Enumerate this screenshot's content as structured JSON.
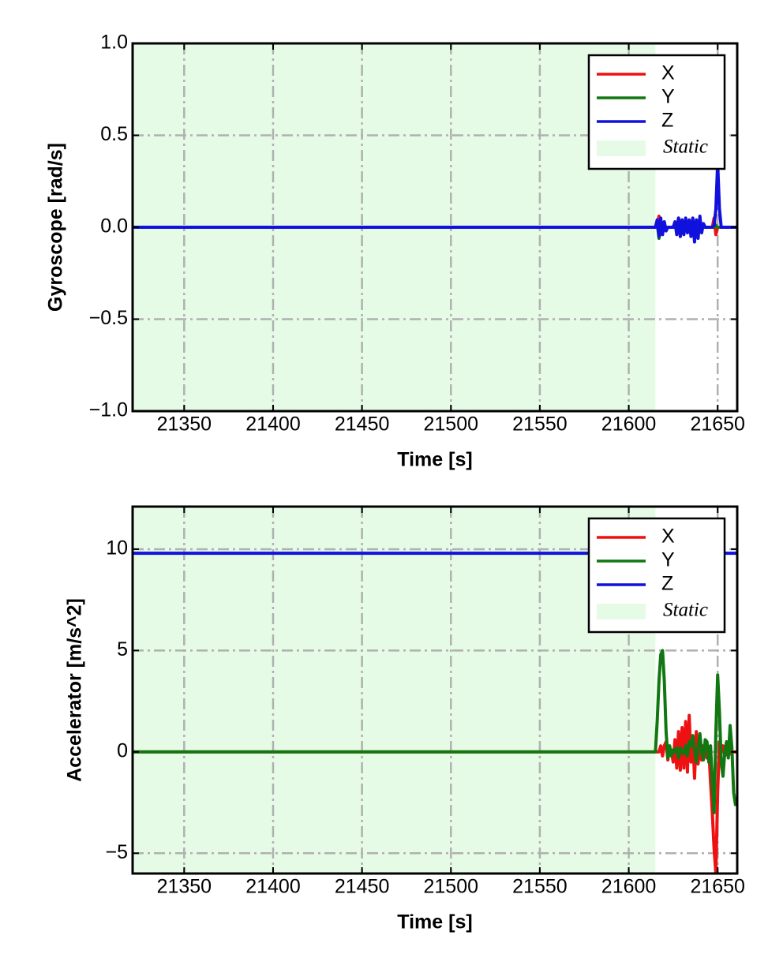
{
  "chart_data": [
    {
      "type": "line",
      "xlabel": "Time [s]",
      "ylabel": "Gyroscope [rad/s]",
      "xlim": [
        21321,
        21661
      ],
      "ylim": [
        -1,
        1
      ],
      "xticks": [
        21350,
        21400,
        21450,
        21500,
        21550,
        21600,
        21650
      ],
      "yticks": [
        {
          "value": -1,
          "label": "−1.0"
        },
        {
          "value": -0.5,
          "label": "−0.5"
        },
        {
          "value": 0,
          "label": "0.0"
        },
        {
          "value": 0.5,
          "label": "0.5"
        },
        {
          "value": 1,
          "label": "1.0"
        }
      ],
      "grid": true,
      "legend": "upper right",
      "static": {
        "name": "Static",
        "color": "#e6fbe6",
        "xrange": [
          21321,
          21615
        ]
      },
      "x": [
        21321,
        21400,
        21500,
        21600,
        21615,
        21616,
        21617,
        21618,
        21619,
        21620,
        21621,
        21622,
        21623,
        21624,
        21625,
        21626,
        21627,
        21628,
        21629,
        21630,
        21631,
        21632,
        21633,
        21634,
        21635,
        21636,
        21637,
        21638,
        21639,
        21640,
        21641,
        21642,
        21643,
        21644,
        21645,
        21646,
        21647,
        21648,
        21649,
        21650,
        21651,
        21652,
        21653,
        21654,
        21655,
        21656,
        21657,
        21658,
        21659,
        21660,
        21661
      ],
      "series": [
        {
          "name": "X",
          "color": "#ee1111",
          "values": [
            0,
            0,
            0,
            0,
            0,
            0.01,
            0.06,
            -0.04,
            0.02,
            0,
            0,
            0,
            0,
            0,
            0,
            0,
            0,
            0.05,
            -0.05,
            0.04,
            -0.02,
            0,
            0,
            0,
            0,
            0,
            0,
            0,
            0,
            0,
            0,
            0,
            0,
            0,
            0,
            0,
            0,
            0.05,
            -0.04,
            0,
            0,
            0,
            0,
            0,
            0,
            0,
            0,
            0,
            0,
            0,
            0
          ]
        },
        {
          "name": "Y",
          "color": "#117711",
          "values": [
            0,
            0,
            0,
            0,
            0,
            0.02,
            -0.06,
            0.03,
            -0.02,
            0.01,
            0,
            0,
            0,
            0,
            0,
            0,
            0,
            0.02,
            -0.03,
            0.02,
            0,
            0.01,
            -0.02,
            0,
            0.01,
            -0.01,
            0,
            0,
            0,
            0,
            0,
            0,
            0,
            0,
            0,
            0,
            0,
            0,
            0.01,
            0,
            0,
            0,
            0,
            0,
            0,
            0,
            0,
            0,
            0,
            0,
            0
          ]
        },
        {
          "name": "Z",
          "color": "#1111dd",
          "values": [
            0,
            0,
            0,
            0,
            0,
            0.04,
            -0.05,
            0.05,
            -0.04,
            0.03,
            -0.02,
            0,
            0,
            0,
            0,
            0.03,
            -0.04,
            0.05,
            -0.05,
            0.04,
            -0.04,
            0.05,
            -0.03,
            0.04,
            -0.05,
            0.05,
            -0.08,
            0.04,
            -0.06,
            0.06,
            -0.03,
            0.02,
            0,
            0,
            0,
            0,
            0,
            0.01,
            0.1,
            0.35,
            0.1,
            0,
            0,
            0,
            0,
            0,
            0,
            0,
            0,
            0,
            0
          ]
        }
      ]
    },
    {
      "type": "line",
      "xlabel": "Time [s]",
      "ylabel": "Accelerator [m/s^2]",
      "xlim": [
        21321,
        21661
      ],
      "ylim": [
        -6,
        12.1
      ],
      "xticks": [
        21350,
        21400,
        21450,
        21500,
        21550,
        21600,
        21650
      ],
      "yticks": [
        {
          "value": -5,
          "label": "−5"
        },
        0,
        5,
        10
      ],
      "grid": true,
      "legend": "upper right",
      "static": {
        "name": "Static",
        "color": "#e6fbe6",
        "xrange": [
          21321,
          21615
        ]
      },
      "x": [
        21321,
        21400,
        21500,
        21600,
        21615,
        21616,
        21617,
        21618,
        21619,
        21620,
        21621,
        21622,
        21623,
        21624,
        21625,
        21626,
        21627,
        21628,
        21629,
        21630,
        21631,
        21632,
        21633,
        21634,
        21635,
        21636,
        21637,
        21638,
        21639,
        21640,
        21641,
        21642,
        21643,
        21644,
        21645,
        21646,
        21647,
        21648,
        21649,
        21650,
        21651,
        21652,
        21653,
        21654,
        21655,
        21656,
        21657,
        21658,
        21659,
        21660,
        21661
      ],
      "series": [
        {
          "name": "X",
          "color": "#ee1111",
          "values": [
            0,
            0,
            0,
            0,
            0,
            0,
            0,
            0.3,
            -0.2,
            0.3,
            0.5,
            -0.4,
            0.2,
            0,
            -0.5,
            0.6,
            -0.8,
            1.0,
            -0.9,
            1.2,
            -0.8,
            1.5,
            -1.0,
            1.8,
            -0.5,
            0.8,
            -1.3,
            1.0,
            -0.6,
            0.5,
            -0.4,
            0.3,
            0,
            -0.3,
            0.2,
            -1.5,
            -3.0,
            -4.8,
            -6.0,
            -2.0,
            0.5,
            0,
            0.3,
            -0.2,
            0,
            0.2,
            -0.1,
            0,
            0,
            0,
            0
          ]
        },
        {
          "name": "Y",
          "color": "#117711",
          "values": [
            0,
            0,
            0,
            0,
            0,
            1.5,
            3.5,
            4.8,
            5.0,
            3.5,
            1.0,
            -0.3,
            0.3,
            -0.2,
            0.1,
            0,
            0.2,
            -0.3,
            0.2,
            0,
            -0.1,
            0.3,
            -0.2,
            0.5,
            0.3,
            0.8,
            0.1,
            -0.5,
            0.2,
            0.9,
            0,
            -0.4,
            0.6,
            0.5,
            -0.5,
            0.3,
            -1.5,
            -3.0,
            1.0,
            3.8,
            2.0,
            -0.5,
            -1.2,
            0,
            0.5,
            -0.3,
            1.3,
            0.2,
            -2.0,
            -2.6,
            -2.6
          ]
        },
        {
          "name": "Z",
          "color": "#1111dd",
          "values": [
            9.8,
            9.8,
            9.8,
            9.8,
            9.8,
            9.8,
            9.8,
            9.8,
            9.8,
            9.8,
            9.8,
            9.8,
            9.8,
            9.8,
            9.8,
            9.8,
            9.8,
            9.8,
            9.8,
            9.8,
            9.8,
            9.8,
            9.8,
            9.8,
            9.8,
            9.8,
            9.8,
            9.8,
            9.8,
            9.8,
            9.8,
            9.8,
            9.8,
            9.8,
            9.8,
            9.8,
            9.8,
            9.8,
            9.8,
            9.8,
            9.8,
            9.8,
            9.8,
            9.8,
            9.8,
            9.8,
            9.8,
            9.8,
            9.8,
            9.8,
            9.8
          ]
        }
      ]
    }
  ]
}
